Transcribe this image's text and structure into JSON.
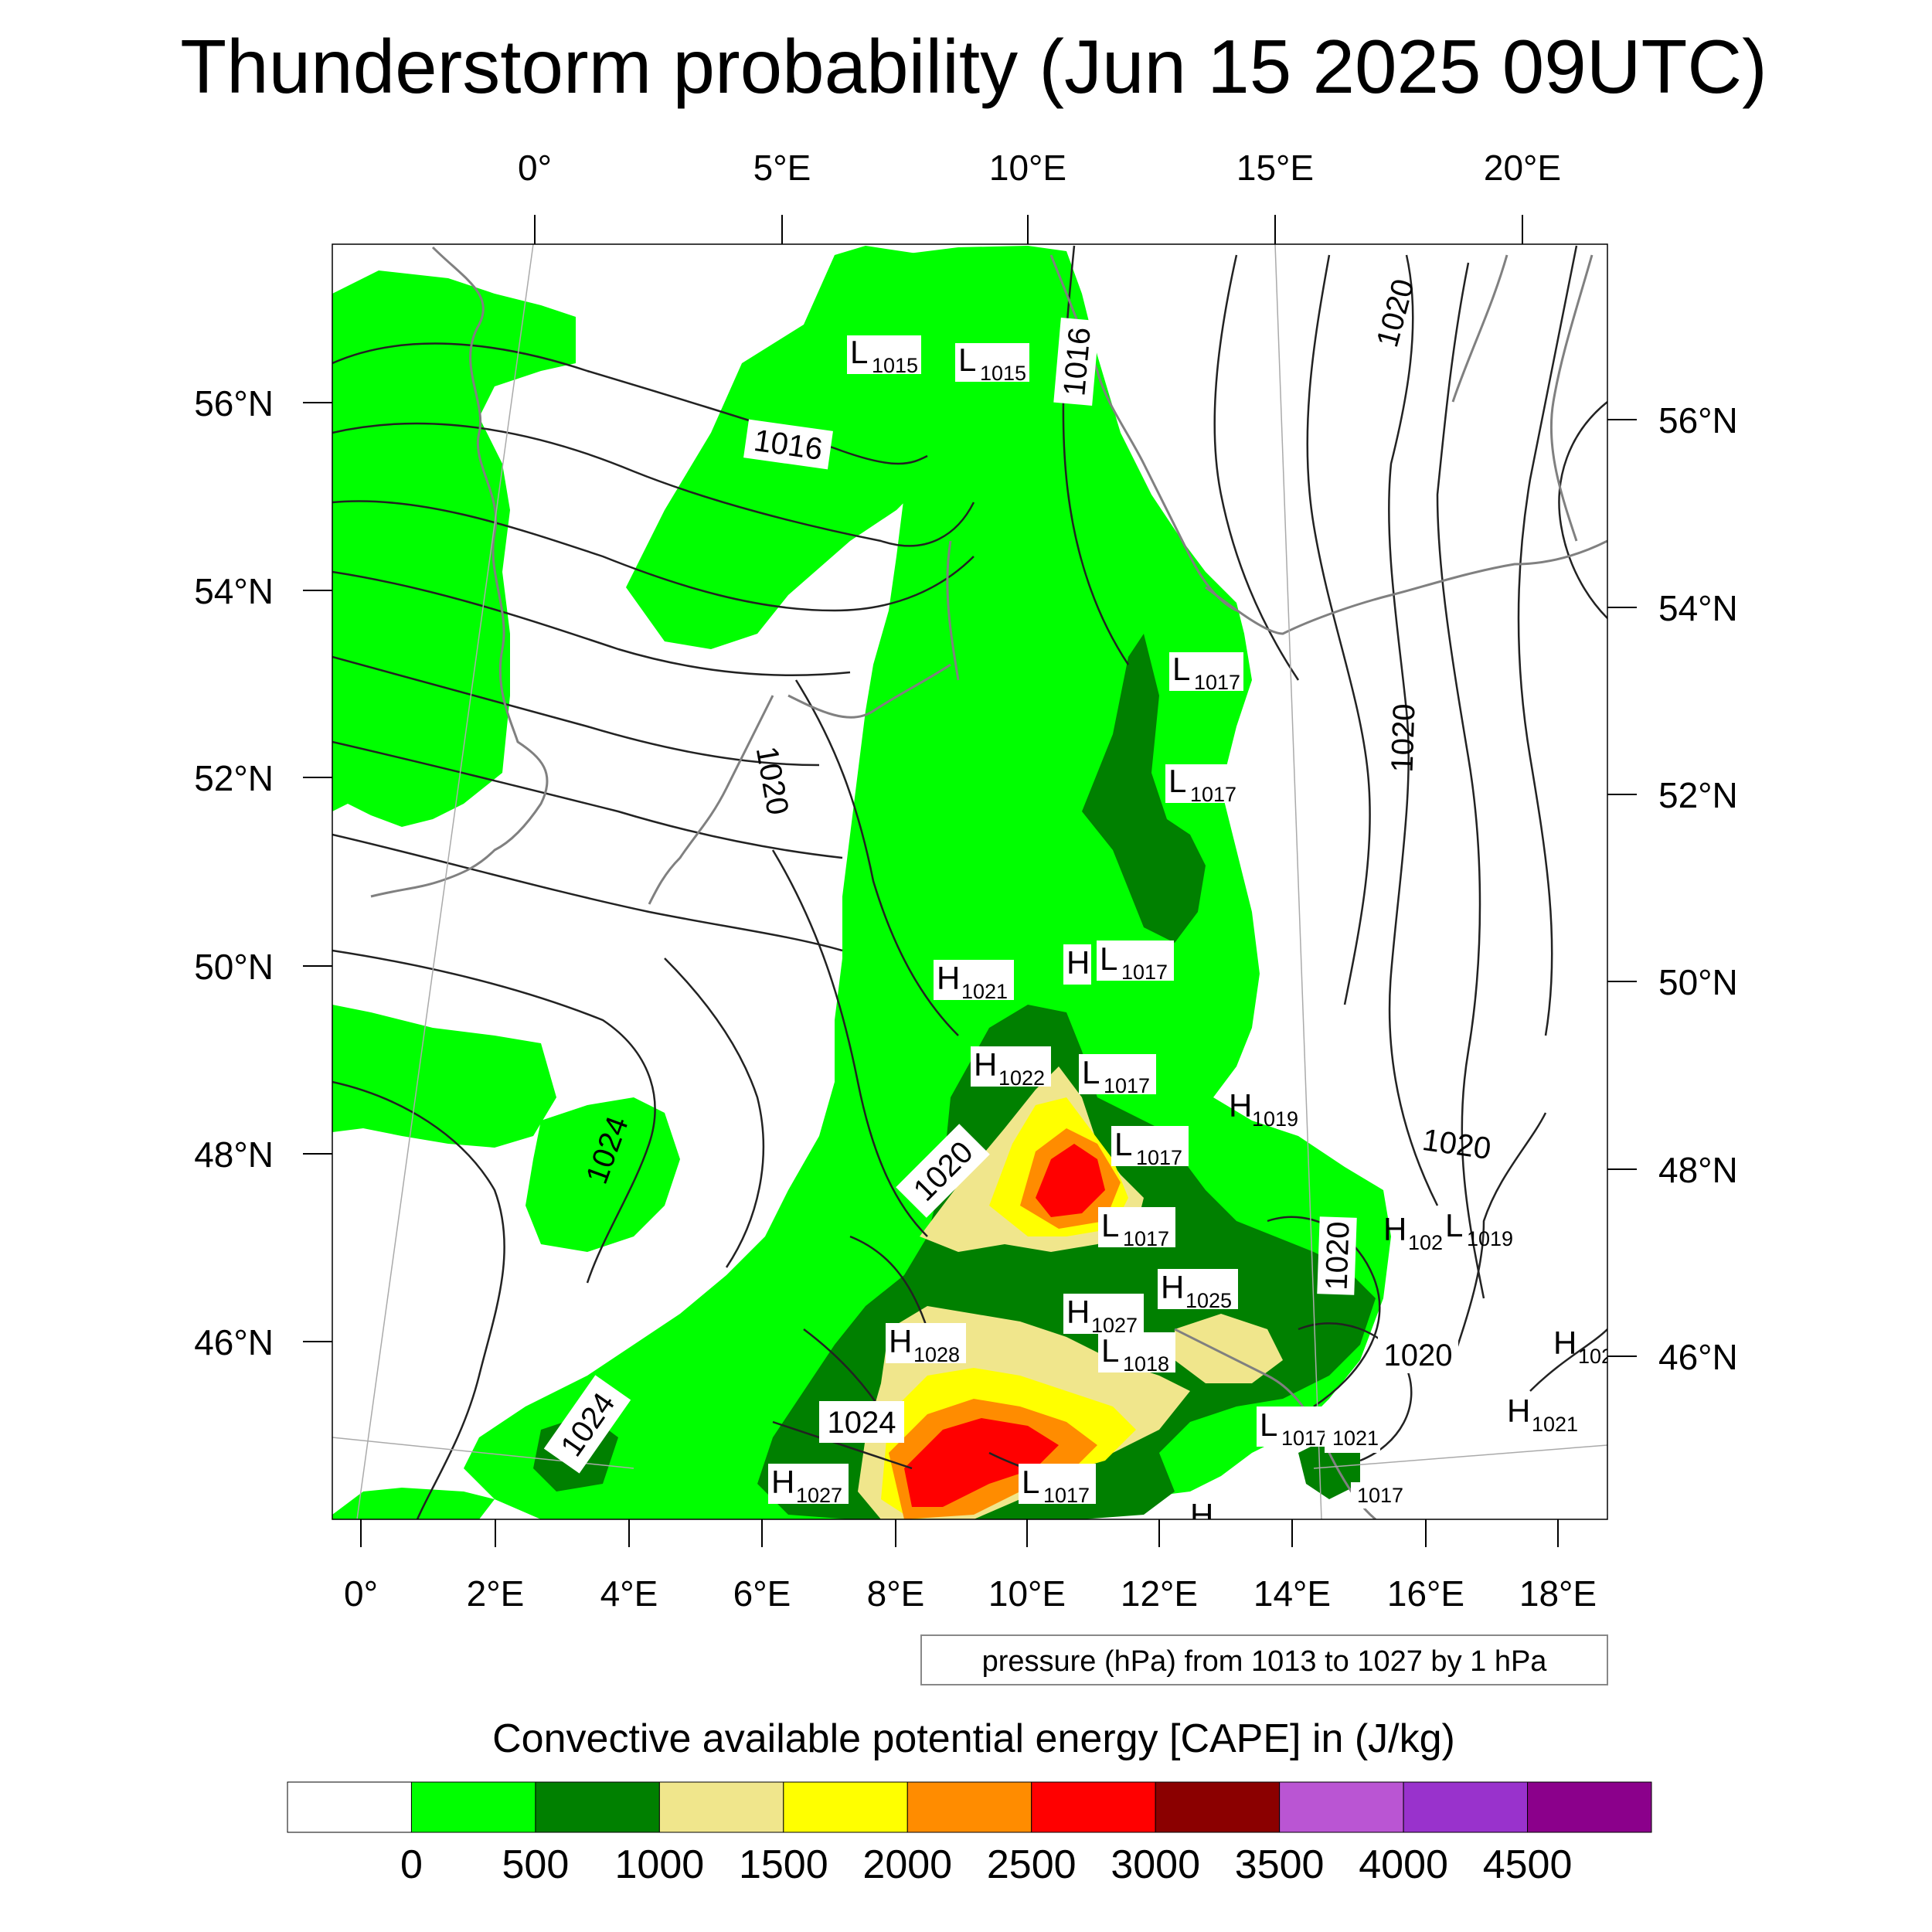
{
  "title": "Thunderstorm probability (Jun 15 2025 09UTC)",
  "map": {
    "top_lon_labels": [
      "0°",
      "5°E",
      "10°E",
      "15°E",
      "20°E"
    ],
    "bottom_lon_labels": [
      "0°",
      "2°E",
      "4°E",
      "6°E",
      "8°E",
      "10°E",
      "12°E",
      "14°E",
      "16°E",
      "18°E"
    ],
    "left_lat_labels": [
      "56°N",
      "54°N",
      "52°N",
      "50°N",
      "48°N",
      "46°N"
    ],
    "right_lat_labels": [
      "56°N",
      "54°N",
      "52°N",
      "50°N",
      "48°N",
      "46°N"
    ]
  },
  "pressure_centers": [
    {
      "letter": "L",
      "value": "1015"
    },
    {
      "letter": "L",
      "value": "1015"
    },
    {
      "letter": "L",
      "value": "1017"
    },
    {
      "letter": "L",
      "value": "1017"
    },
    {
      "letter": "H",
      "value": "1021"
    },
    {
      "letter": "H",
      "value": ""
    },
    {
      "letter": "L",
      "value": "1017"
    },
    {
      "letter": "H",
      "value": "1022"
    },
    {
      "letter": "L",
      "value": "1017"
    },
    {
      "letter": "H",
      "value": "1019"
    },
    {
      "letter": "L",
      "value": "1017"
    },
    {
      "letter": "L",
      "value": "1017"
    },
    {
      "letter": "H",
      "value": "102"
    },
    {
      "letter": "L",
      "value": "1019"
    },
    {
      "letter": "H",
      "value": "1025"
    },
    {
      "letter": "H",
      "value": "1027"
    },
    {
      "letter": "H",
      "value": "1028"
    },
    {
      "letter": "L",
      "value": "1018"
    },
    {
      "letter": "H",
      "value": "102"
    },
    {
      "letter": "H",
      "value": "1021"
    },
    {
      "letter": "L",
      "value": "1017"
    },
    {
      "letter": "",
      "value": "1021"
    },
    {
      "letter": "H",
      "value": "1027"
    },
    {
      "letter": "L",
      "value": "1017"
    },
    {
      "letter": "",
      "value": "1017"
    },
    {
      "letter": "H",
      "value": ""
    }
  ],
  "isobar_labels": [
    "1016",
    "1016",
    "1020",
    "1020",
    "1020",
    "1020",
    "1020",
    "1020",
    "1020",
    "1024",
    "1024",
    "1024"
  ],
  "contour_note": "pressure (hPa) from 1013 to 1027 by 1 hPa",
  "legend": {
    "title": "Convective available potential energy [CAPE] in (J/kg)",
    "colors": [
      "#ffffff",
      "#00ff00",
      "#008000",
      "#f0e68c",
      "#ffff00",
      "#ff8c00",
      "#ff0000",
      "#8b0000",
      "#ba55d3",
      "#9932cc",
      "#8b008b"
    ],
    "labels": [
      "0",
      "500",
      "1000",
      "1500",
      "2000",
      "2500",
      "3000",
      "3500",
      "4000",
      "4500"
    ]
  }
}
